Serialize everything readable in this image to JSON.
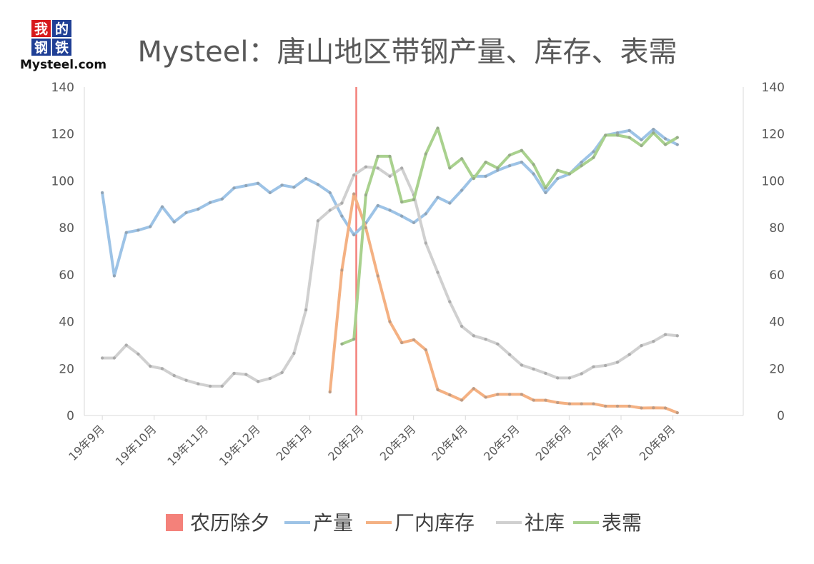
{
  "logo": {
    "chars": [
      "我",
      "的",
      "钢",
      "铁"
    ],
    "text": "Mysteel.com",
    "colors": [
      "#d7191c",
      "#1f3f95",
      "#1f3f95",
      "#1f3f95"
    ]
  },
  "chart_data": {
    "type": "line",
    "title": "Mysteel：唐山地区带钢产量、库存、表需",
    "xlabel": "",
    "ylabel": "",
    "ylim": [
      0,
      140
    ],
    "y_ticks": [
      0,
      20,
      40,
      60,
      80,
      100,
      120,
      140
    ],
    "y2lim": [
      0,
      140
    ],
    "y2_ticks": [
      0,
      20,
      40,
      60,
      80,
      100,
      120,
      140
    ],
    "x_ticks": [
      "19年9月",
      "19年10月",
      "19年11月",
      "19年12月",
      "20年1月",
      "20年2月",
      "20年3月",
      "20年4月",
      "20年5月",
      "20年6月",
      "20年7月",
      "20年8月"
    ],
    "grid": false,
    "legend_position": "bottom",
    "vline": {
      "name": "农历除夕",
      "x": 37,
      "color": "#f4817a"
    },
    "series": [
      {
        "name": "产量",
        "color": "#9dc3e6",
        "points": [
          [
            4.4,
            95
          ],
          [
            5.4,
            59.5
          ],
          [
            6.4,
            78
          ],
          [
            7.4,
            79
          ],
          [
            8.4,
            80.5
          ],
          [
            9.4,
            89
          ],
          [
            10.4,
            82.5
          ],
          [
            11.4,
            86.5
          ],
          [
            12.4,
            88
          ],
          [
            13.4,
            90.8
          ],
          [
            14.4,
            92.3
          ],
          [
            15.4,
            97
          ],
          [
            16.4,
            98
          ],
          [
            17.4,
            99
          ],
          [
            18.4,
            95
          ],
          [
            19.4,
            98.2
          ],
          [
            20.4,
            97.3
          ],
          [
            21.4,
            101
          ],
          [
            22.4,
            98.5
          ],
          [
            23.4,
            95
          ],
          [
            24.4,
            85
          ],
          [
            25.4,
            77
          ],
          [
            26.4,
            82
          ],
          [
            27.4,
            89.5
          ],
          [
            28.4,
            87.5
          ],
          [
            29.4,
            85
          ],
          [
            30.4,
            82.2
          ],
          [
            31.4,
            86
          ],
          [
            32.4,
            93
          ],
          [
            33.4,
            90.5
          ],
          [
            34.4,
            96
          ],
          [
            35.4,
            102
          ],
          [
            36.4,
            102
          ],
          [
            37.4,
            104.5
          ],
          [
            38.4,
            106.5
          ],
          [
            39.4,
            108
          ],
          [
            40.4,
            103
          ],
          [
            41.4,
            95
          ],
          [
            42.4,
            101
          ],
          [
            43.4,
            103
          ],
          [
            44.4,
            108
          ],
          [
            45.4,
            112.5
          ],
          [
            46.4,
            119.5
          ],
          [
            47.4,
            120.5
          ],
          [
            48.4,
            121.5
          ],
          [
            49.4,
            117.5
          ],
          [
            50.4,
            122
          ],
          [
            51.4,
            118
          ],
          [
            52.4,
            115.5
          ]
        ]
      },
      {
        "name": "厂内库存",
        "color": "#f4b183",
        "points": [
          [
            23.4,
            10
          ],
          [
            24.4,
            62
          ],
          [
            25.4,
            94.5
          ],
          [
            26.4,
            80
          ],
          [
            27.4,
            59.5
          ],
          [
            28.4,
            40
          ],
          [
            29.4,
            31
          ],
          [
            30.4,
            32.3
          ],
          [
            31.4,
            28
          ],
          [
            32.4,
            11
          ],
          [
            33.4,
            8.8
          ],
          [
            34.4,
            6.5
          ],
          [
            35.4,
            11.5
          ],
          [
            36.4,
            7.8
          ],
          [
            37.4,
            9
          ],
          [
            38.4,
            9
          ],
          [
            39.4,
            9
          ],
          [
            40.4,
            6.5
          ],
          [
            41.4,
            6.5
          ],
          [
            42.4,
            5.5
          ],
          [
            43.4,
            5
          ],
          [
            44.4,
            5
          ],
          [
            45.4,
            5
          ],
          [
            46.4,
            4
          ],
          [
            47.4,
            4
          ],
          [
            48.4,
            4
          ],
          [
            49.4,
            3.2
          ],
          [
            50.4,
            3.3
          ],
          [
            51.4,
            3.2
          ],
          [
            52.4,
            1.2
          ]
        ]
      },
      {
        "name": "社库",
        "color": "#d0d0d0",
        "points": [
          [
            4.4,
            24.5
          ],
          [
            5.4,
            24.5
          ],
          [
            6.4,
            30
          ],
          [
            7.4,
            26.2
          ],
          [
            8.4,
            21
          ],
          [
            9.4,
            20
          ],
          [
            10.4,
            17
          ],
          [
            11.4,
            15
          ],
          [
            12.4,
            13.5
          ],
          [
            13.4,
            12.5
          ],
          [
            14.4,
            12.5
          ],
          [
            15.4,
            18
          ],
          [
            16.4,
            17.5
          ],
          [
            17.4,
            14.5
          ],
          [
            18.4,
            15.8
          ],
          [
            19.4,
            18.3
          ],
          [
            20.4,
            26.5
          ],
          [
            21.4,
            45
          ],
          [
            22.4,
            83
          ],
          [
            23.4,
            87.5
          ],
          [
            24.4,
            90.5
          ],
          [
            25.4,
            102.5
          ],
          [
            26.4,
            106
          ],
          [
            27.4,
            105.5
          ],
          [
            28.4,
            102
          ],
          [
            29.4,
            105.5
          ],
          [
            30.4,
            94
          ],
          [
            31.4,
            73.5
          ],
          [
            32.4,
            61
          ],
          [
            33.4,
            48.5
          ],
          [
            34.4,
            38
          ],
          [
            35.4,
            34
          ],
          [
            36.4,
            32.5
          ],
          [
            37.4,
            30.5
          ],
          [
            38.4,
            26
          ],
          [
            39.4,
            21.5
          ],
          [
            40.4,
            19.8
          ],
          [
            41.4,
            18
          ],
          [
            42.4,
            16
          ],
          [
            43.4,
            16
          ],
          [
            44.4,
            17.8
          ],
          [
            45.4,
            20.8
          ],
          [
            46.4,
            21.3
          ],
          [
            47.4,
            22.7
          ],
          [
            48.4,
            26
          ],
          [
            49.4,
            29.8
          ],
          [
            50.4,
            31.6
          ],
          [
            51.4,
            34.5
          ],
          [
            52.4,
            34
          ]
        ]
      },
      {
        "name": "表需",
        "color": "#a9d18e",
        "points": [
          [
            24.4,
            30.5
          ],
          [
            25.4,
            32.5
          ],
          [
            26.4,
            94
          ],
          [
            27.4,
            110.5
          ],
          [
            28.4,
            110.5
          ],
          [
            29.4,
            91
          ],
          [
            30.4,
            92
          ],
          [
            31.4,
            111.5
          ],
          [
            32.4,
            122.5
          ],
          [
            33.4,
            105.5
          ],
          [
            34.4,
            109.5
          ],
          [
            35.4,
            101
          ],
          [
            36.4,
            108
          ],
          [
            37.4,
            105.5
          ],
          [
            38.4,
            111
          ],
          [
            39.4,
            113
          ],
          [
            40.4,
            107
          ],
          [
            41.4,
            97
          ],
          [
            42.4,
            104.5
          ],
          [
            43.4,
            103
          ],
          [
            44.4,
            106.5
          ],
          [
            45.4,
            110
          ],
          [
            46.4,
            119.5
          ],
          [
            47.4,
            119.5
          ],
          [
            48.4,
            118.5
          ],
          [
            49.4,
            115
          ],
          [
            50.4,
            120.5
          ],
          [
            51.4,
            115.5
          ],
          [
            52.4,
            118.5
          ]
        ]
      }
    ]
  }
}
